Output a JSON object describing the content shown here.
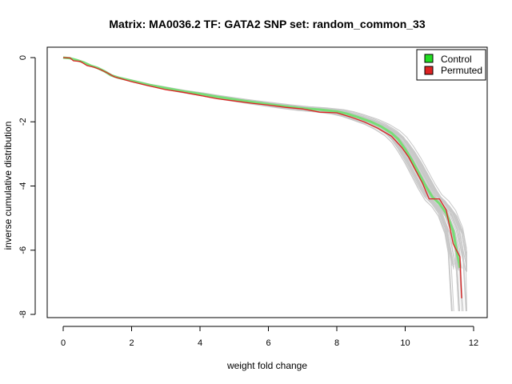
{
  "chart_data": {
    "type": "line",
    "title": "Matrix: MA0036.2 TF: GATA2 SNP set: random_common_33",
    "xlabel": "weight fold change",
    "ylabel": "inverse cumulative distribution",
    "xlim": [
      0,
      12
    ],
    "ylim": [
      -8,
      0
    ],
    "xticks": [
      "0",
      "2",
      "4",
      "6",
      "8",
      "10",
      "12"
    ],
    "yticks": [
      "0",
      "-2",
      "-4",
      "-6",
      "-8"
    ],
    "grid": false,
    "legend_position": "top-right",
    "legend": [
      {
        "label": "Control",
        "color": "#22dd22"
      },
      {
        "label": "Permuted",
        "color": "#dd2222"
      }
    ],
    "series": [
      {
        "name": "Control",
        "color": "#77dd77",
        "x": [
          0,
          0.2,
          0.4,
          0.6,
          0.8,
          1.0,
          1.2,
          1.4,
          1.6,
          2.0,
          2.5,
          3.0,
          3.5,
          4.0,
          4.5,
          5.0,
          5.5,
          6.0,
          6.5,
          7.0,
          7.5,
          8.0,
          8.3,
          8.6,
          9.0,
          9.3,
          9.6,
          9.8,
          10.0,
          10.2,
          10.4,
          10.6,
          10.8,
          11.0,
          11.2,
          11.4,
          11.5,
          11.6
        ],
        "y": [
          0,
          -0.02,
          -0.08,
          -0.15,
          -0.25,
          -0.32,
          -0.42,
          -0.55,
          -0.62,
          -0.72,
          -0.85,
          -0.95,
          -1.05,
          -1.13,
          -1.22,
          -1.3,
          -1.38,
          -1.45,
          -1.52,
          -1.58,
          -1.62,
          -1.68,
          -1.75,
          -1.85,
          -2.0,
          -2.15,
          -2.35,
          -2.55,
          -2.85,
          -3.2,
          -3.6,
          -4.0,
          -4.35,
          -4.55,
          -4.85,
          -5.4,
          -6.0,
          -6.55
        ]
      },
      {
        "name": "Permuted",
        "color": "#dd2222",
        "x": [
          0,
          0.2,
          0.3,
          0.5,
          0.7,
          0.9,
          1.1,
          1.3,
          1.5,
          2.0,
          2.5,
          3.0,
          3.5,
          4.0,
          4.5,
          5.0,
          5.5,
          6.0,
          6.5,
          7.0,
          7.5,
          8.0,
          8.4,
          8.8,
          9.2,
          9.6,
          9.9,
          10.1,
          10.3,
          10.5,
          10.7,
          11.0,
          11.2,
          11.4,
          11.5,
          11.6,
          11.65
        ],
        "y": [
          0,
          -0.01,
          -0.1,
          -0.12,
          -0.25,
          -0.3,
          -0.38,
          -0.48,
          -0.6,
          -0.75,
          -0.88,
          -1.0,
          -1.08,
          -1.18,
          -1.28,
          -1.35,
          -1.42,
          -1.48,
          -1.55,
          -1.6,
          -1.7,
          -1.72,
          -1.85,
          -2.0,
          -2.2,
          -2.45,
          -2.8,
          -3.1,
          -3.5,
          -3.9,
          -4.4,
          -4.4,
          -4.75,
          -5.8,
          -6.0,
          -6.2,
          -7.5
        ]
      }
    ]
  }
}
